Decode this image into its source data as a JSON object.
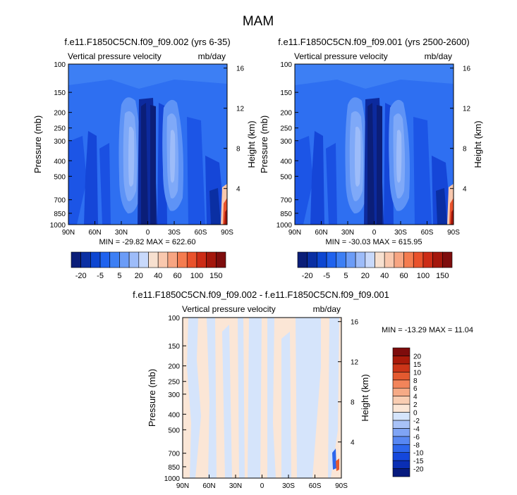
{
  "figure": {
    "title": "MAM"
  },
  "colors": {
    "cmap_main": [
      "#0b1e78",
      "#0a2fa3",
      "#0d46d1",
      "#1f62ee",
      "#3d7ff4",
      "#6b9cf7",
      "#9dbcf9",
      "#c8d9fb",
      "#f7e0cf",
      "#f9c8ae",
      "#f7a582",
      "#f47c50",
      "#e9522c",
      "#cc2c16",
      "#a4170c",
      "#7e0d0d"
    ],
    "cmap_diff": [
      "#061a7e",
      "#0a2eb4",
      "#1447dc",
      "#2d66ec",
      "#5787f2",
      "#7fa4f5",
      "#a8c2f8",
      "#d5e4fb",
      "#fbe6d6",
      "#f9cdb2",
      "#f6aa86",
      "#f2845a",
      "#e45a30",
      "#cc3518",
      "#a91a0a",
      "#7e0c0c"
    ]
  },
  "chart_data": [
    {
      "type": "heatmap",
      "title": "f.e11.F1850C5CN.f09_f09.002 (yrs 6-35)",
      "left_label": "Vertical pressure velocity",
      "right_label": "mb/day",
      "xlabel": "",
      "ylabel": "Pressure (mb)",
      "ylabel_right": "Height (km)",
      "x_ticks": [
        "90N",
        "60N",
        "30N",
        "0",
        "30S",
        "60S",
        "90S"
      ],
      "y_ticks": [
        "100",
        "150",
        "200",
        "250",
        "300",
        "400",
        "500",
        "700",
        "850",
        "1000"
      ],
      "y_ticks_right": [
        "16",
        "12",
        "8",
        "4"
      ],
      "stats": "MIN = -29.82  MAX = 622.60",
      "colorbar_labels": [
        "-20",
        "-5",
        "5",
        "20",
        "40",
        "60",
        "100",
        "150"
      ],
      "min": -29.82,
      "max": 622.6
    },
    {
      "type": "heatmap",
      "title": "f.e11.F1850C5CN.f09_f09.001 (yrs 2500-2600)",
      "left_label": "Vertical pressure velocity",
      "right_label": "mb/day",
      "xlabel": "",
      "ylabel": "Pressure (mb)",
      "ylabel_right": "Height (km)",
      "x_ticks": [
        "90N",
        "60N",
        "30N",
        "0",
        "30S",
        "60S",
        "90S"
      ],
      "y_ticks": [
        "100",
        "150",
        "200",
        "250",
        "300",
        "400",
        "500",
        "700",
        "850",
        "1000"
      ],
      "y_ticks_right": [
        "16",
        "12",
        "8",
        "4"
      ],
      "stats": "MIN = -30.03  MAX = 615.95",
      "colorbar_labels": [
        "-20",
        "-5",
        "5",
        "20",
        "40",
        "60",
        "100",
        "150"
      ],
      "min": -30.03,
      "max": 615.95
    },
    {
      "type": "heatmap",
      "title": "f.e11.F1850C5CN.f09_f09.002 - f.e11.F1850C5CN.f09_f09.001",
      "left_label": "Vertical pressure velocity",
      "right_label": "mb/day",
      "xlabel": "",
      "ylabel": "Pressure (mb)",
      "ylabel_right": "Height (km)",
      "x_ticks": [
        "90N",
        "60N",
        "30N",
        "0",
        "30S",
        "60S",
        "90S"
      ],
      "y_ticks": [
        "100",
        "150",
        "200",
        "250",
        "300",
        "400",
        "500",
        "700",
        "850",
        "1000"
      ],
      "y_ticks_right": [
        "16",
        "12",
        "8",
        "4"
      ],
      "stats": "MIN = -13.29  MAX = 11.04",
      "colorbar_labels": [
        "20",
        "15",
        "10",
        "8",
        "6",
        "4",
        "2",
        "0",
        "-2",
        "-4",
        "-6",
        "-8",
        "-10",
        "-15",
        "-20"
      ],
      "min": -13.29,
      "max": 11.04
    }
  ]
}
